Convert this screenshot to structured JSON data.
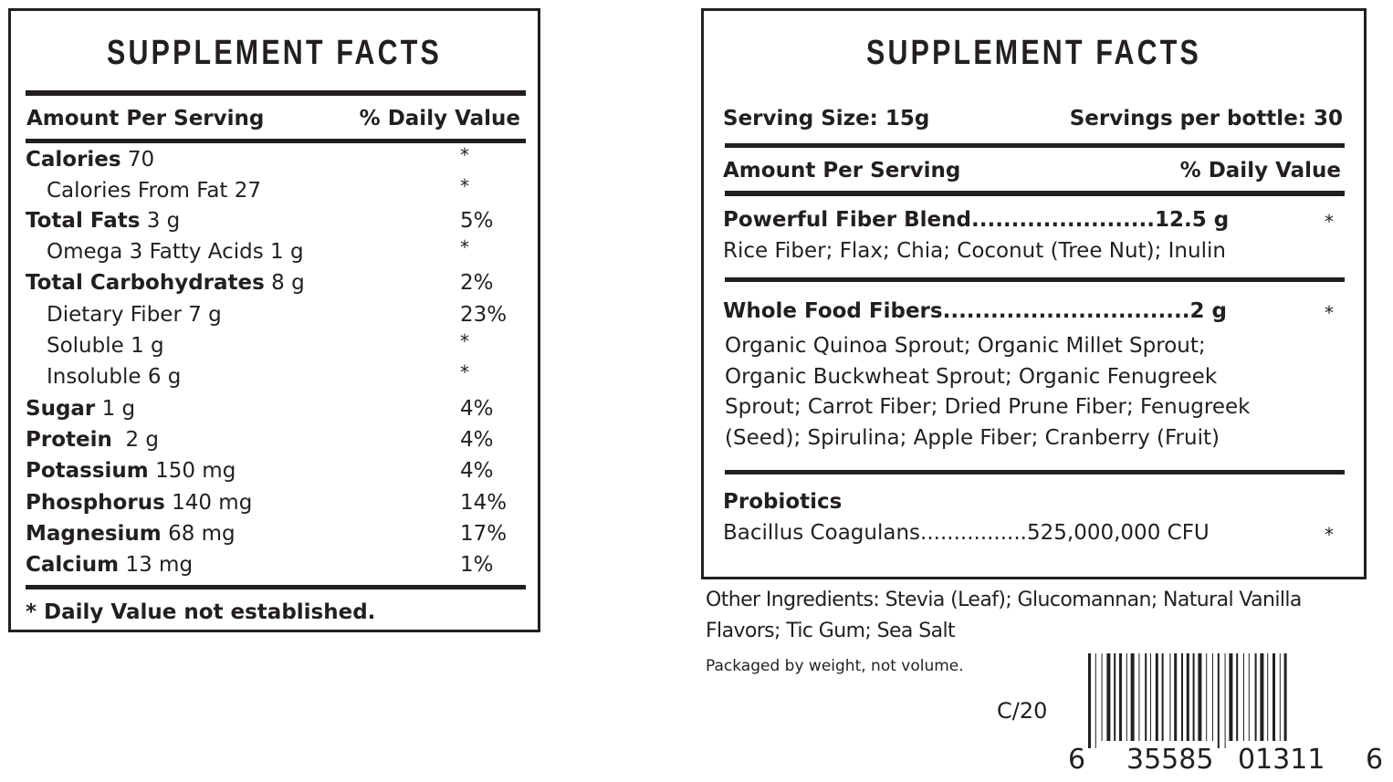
{
  "left": {
    "title": "SUPPLEMENT FACTS",
    "header_amount": "Amount Per Serving",
    "header_dv": "% Daily Value",
    "rows": [
      {
        "name": "Calories",
        "amount": " 70",
        "dv": "*"
      },
      {
        "name": "Calories From Fat",
        "amount": " 27",
        "dv": "*"
      },
      {
        "name": "Total Fats",
        "amount": " 3 g",
        "dv": "5%"
      },
      {
        "name": "Omega 3 Fatty Acids",
        "amount": " 1 g",
        "dv": "*"
      },
      {
        "name": "Total Carbohydrates",
        "amount": " 8 g",
        "dv": "2%"
      },
      {
        "name": "Dietary Fiber",
        "amount": " 7 g",
        "dv": "23%"
      },
      {
        "name": "Soluble",
        "amount": " 1 g",
        "dv": "*"
      },
      {
        "name": "Insoluble",
        "amount": " 6 g",
        "dv": "*"
      },
      {
        "name": "Sugar",
        "amount": " 1 g",
        "dv": "4%"
      },
      {
        "name": "Protein",
        "amount": "  2 g",
        "dv": "4%"
      },
      {
        "name": "Potassium",
        "amount": " 150 mg",
        "dv": "4%"
      },
      {
        "name": "Phosphorus",
        "amount": " 140 mg",
        "dv": "14%"
      },
      {
        "name": "Magnesium",
        "amount": " 68 mg",
        "dv": "17%"
      },
      {
        "name": "Calcium",
        "amount": " 13 mg",
        "dv": "1%"
      }
    ],
    "footnote": "* Daily Value not established."
  },
  "right": {
    "title": "SUPPLEMENT FACTS",
    "serving_size": "Serving Size: 15g",
    "servings_per_bottle": "Servings per bottle: 30",
    "header_amount": "Amount Per Serving",
    "header_dv": "% Daily Value",
    "fiber_blend": {
      "name": "Powerful Fiber Blend",
      "dots": ".......................",
      "amount": "12.5 g",
      "dv": "*",
      "ingredients": "Rice Fiber; Flax; Chia; Coconut (Tree Nut); Inulin"
    },
    "whole_food": {
      "name": "Whole Food Fibers",
      "dots": "...............................",
      "amount": "2 g",
      "dv": "*",
      "ingredients": [
        "Organic Quinoa Sprout; Organic Millet Sprout;",
        "Organic Buckwheat Sprout; Organic Fenugreek",
        "Sprout; Carrot Fiber; Dried Prune Fiber; Fenugreek",
        "(Seed); Spirulina; Apple Fiber; Cranberry (Fruit)"
      ]
    },
    "probiotics": {
      "heading": "Probiotics",
      "name": "Bacillus Coagulans",
      "dots": "................",
      "amount": "525,000,000 CFU",
      "dv": "*"
    }
  },
  "other_ingredients": [
    "Other Ingredients: Stevia (Leaf); Glucomannan; Natural Vanilla",
    "Flavors; Tic Gum; Sea Salt"
  ],
  "packaged_note": "Packaged by weight, not volume.",
  "code": "C/20",
  "barcode": {
    "first": "6",
    "left_group": "35585",
    "right_group": "01311",
    "last": "6"
  }
}
